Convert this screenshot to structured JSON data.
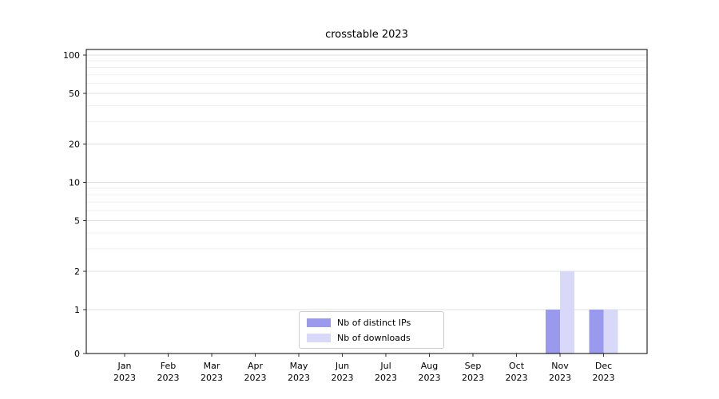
{
  "chart_data": {
    "type": "bar",
    "title": "crosstable 2023",
    "categories": [
      "Jan 2023",
      "Feb 2023",
      "Mar 2023",
      "Apr 2023",
      "May 2023",
      "Jun 2023",
      "Jul 2023",
      "Aug 2023",
      "Sep 2023",
      "Oct 2023",
      "Nov 2023",
      "Dec 2023"
    ],
    "series": [
      {
        "name": "Nb of distinct IPs",
        "color": "#9999ee",
        "values": [
          0,
          0,
          0,
          0,
          0,
          0,
          0,
          0,
          0,
          0,
          1,
          1
        ]
      },
      {
        "name": "Nb of downloads",
        "color": "#d8d8f8",
        "values": [
          0,
          0,
          0,
          0,
          0,
          0,
          0,
          0,
          0,
          0,
          2,
          1
        ]
      }
    ],
    "xlabel": "",
    "ylabel": "",
    "y_axis": {
      "scale": "symlog",
      "ticks": [
        0,
        1,
        2,
        5,
        10,
        20,
        50,
        100
      ],
      "minor_ticks": [
        3,
        4,
        6,
        7,
        8,
        9,
        30,
        40,
        60,
        70,
        80,
        90
      ],
      "ylim": [
        0,
        100
      ]
    },
    "grid": "horizontal",
    "legend_position": "lower center"
  }
}
